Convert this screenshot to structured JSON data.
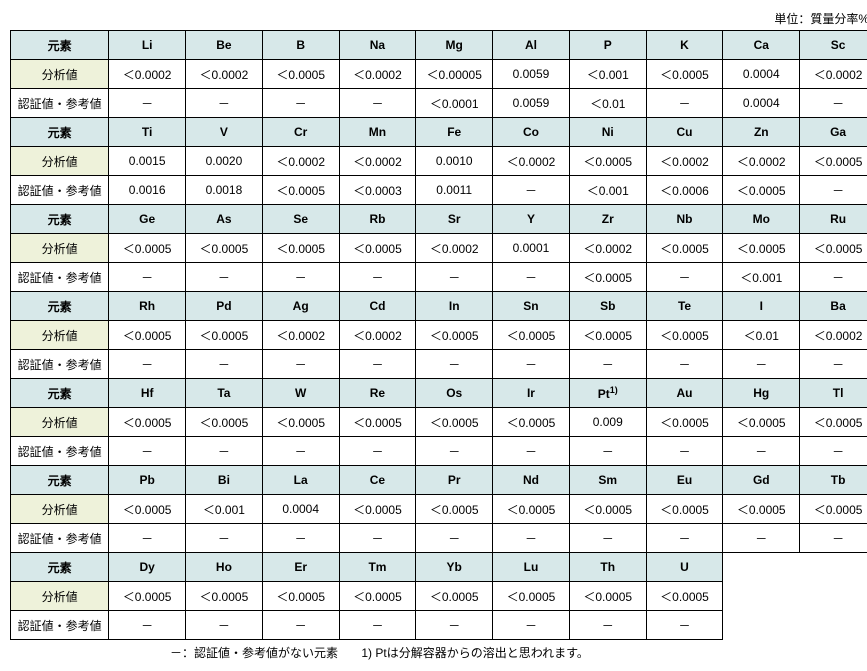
{
  "unit_label": "単位：質量分率%",
  "row_labels": {
    "header": "元素",
    "analysis": "分析値",
    "certified": "認証値・参考値"
  },
  "colors": {
    "header_bg": "#d7e8e9",
    "analysis_row_bg": "#eef2da",
    "certified_row_bg": "#ffffff",
    "border": "#000000",
    "page_bg": "#ffffff",
    "text": "#000000"
  },
  "footnote": {
    "dash": "－：認証値・参考値がない元素",
    "pt": "1) Ptは分解容器からの溶出と思われます。"
  },
  "groups": [
    {
      "elements": [
        "Li",
        "Be",
        "B",
        "Na",
        "Mg",
        "Al",
        "P",
        "K",
        "Ca",
        "Sc"
      ],
      "analysis": [
        "＜0.0002",
        "＜0.0002",
        "＜0.0005",
        "＜0.0002",
        "＜0.00005",
        "0.0059",
        "＜0.001",
        "＜0.0005",
        "0.0004",
        "＜0.0002"
      ],
      "certified": [
        "－",
        "－",
        "－",
        "－",
        "＜0.0001",
        "0.0059",
        "＜0.01",
        "－",
        "0.0004",
        "－"
      ]
    },
    {
      "elements": [
        "Ti",
        "V",
        "Cr",
        "Mn",
        "Fe",
        "Co",
        "Ni",
        "Cu",
        "Zn",
        "Ga"
      ],
      "analysis": [
        "0.0015",
        "0.0020",
        "＜0.0002",
        "＜0.0002",
        "0.0010",
        "＜0.0002",
        "＜0.0005",
        "＜0.0002",
        "＜0.0002",
        "＜0.0005"
      ],
      "certified": [
        "0.0016",
        "0.0018",
        "＜0.0005",
        "＜0.0003",
        "0.0011",
        "－",
        "＜0.001",
        "＜0.0006",
        "＜0.0005",
        "－"
      ]
    },
    {
      "elements": [
        "Ge",
        "As",
        "Se",
        "Rb",
        "Sr",
        "Y",
        "Zr",
        "Nb",
        "Mo",
        "Ru"
      ],
      "analysis": [
        "＜0.0005",
        "＜0.0005",
        "＜0.0005",
        "＜0.0005",
        "＜0.0002",
        "0.0001",
        "＜0.0002",
        "＜0.0005",
        "＜0.0005",
        "＜0.0005"
      ],
      "certified": [
        "－",
        "－",
        "－",
        "－",
        "－",
        "－",
        "＜0.0005",
        "－",
        "＜0.001",
        "－"
      ]
    },
    {
      "elements": [
        "Rh",
        "Pd",
        "Ag",
        "Cd",
        "In",
        "Sn",
        "Sb",
        "Te",
        "I",
        "Ba"
      ],
      "analysis": [
        "＜0.0005",
        "＜0.0005",
        "＜0.0002",
        "＜0.0002",
        "＜0.0005",
        "＜0.0005",
        "＜0.0005",
        "＜0.0005",
        "＜0.01",
        "＜0.0002"
      ],
      "certified": [
        "－",
        "－",
        "－",
        "－",
        "－",
        "－",
        "－",
        "－",
        "－",
        "－"
      ]
    },
    {
      "elements": [
        "Hf",
        "Ta",
        "W",
        "Re",
        "Os",
        "Ir",
        "Pt",
        "Au",
        "Hg",
        "Tl"
      ],
      "element_sup": {
        "6": "1)"
      },
      "analysis": [
        "＜0.0005",
        "＜0.0005",
        "＜0.0005",
        "＜0.0005",
        "＜0.0005",
        "＜0.0005",
        "0.009",
        "＜0.0005",
        "＜0.0005",
        "＜0.0005"
      ],
      "certified": [
        "－",
        "－",
        "－",
        "－",
        "－",
        "－",
        "－",
        "－",
        "－",
        "－"
      ]
    },
    {
      "elements": [
        "Pb",
        "Bi",
        "La",
        "Ce",
        "Pr",
        "Nd",
        "Sm",
        "Eu",
        "Gd",
        "Tb"
      ],
      "analysis": [
        "＜0.0005",
        "＜0.001",
        "0.0004",
        "＜0.0005",
        "＜0.0005",
        "＜0.0005",
        "＜0.0005",
        "＜0.0005",
        "＜0.0005",
        "＜0.0005"
      ],
      "certified": [
        "－",
        "－",
        "－",
        "－",
        "－",
        "－",
        "－",
        "－",
        "－",
        "－"
      ]
    },
    {
      "elements": [
        "Dy",
        "Ho",
        "Er",
        "Tm",
        "Yb",
        "Lu",
        "Th",
        "U"
      ],
      "analysis": [
        "＜0.0005",
        "＜0.0005",
        "＜0.0005",
        "＜0.0005",
        "＜0.0005",
        "＜0.0005",
        "＜0.0005",
        "＜0.0005"
      ],
      "certified": [
        "－",
        "－",
        "－",
        "－",
        "－",
        "－",
        "－",
        "－"
      ]
    }
  ]
}
